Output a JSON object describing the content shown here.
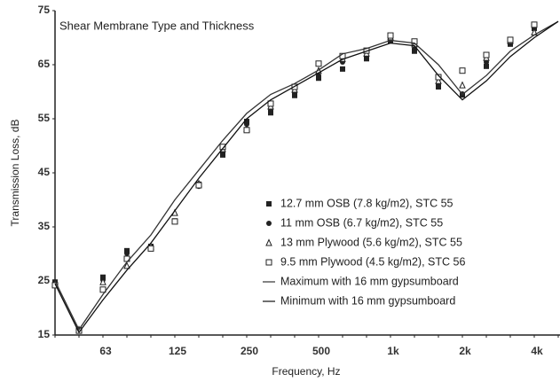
{
  "chart_data": {
    "type": "line",
    "title": "Shear Membrane Type and Thickness",
    "x_label": "Frequency, Hz",
    "y_label": "Transmission Loss, dB",
    "categories": [
      null,
      null,
      "63",
      null,
      null,
      "125",
      null,
      null,
      "250",
      null,
      null,
      "500",
      null,
      null,
      "1k",
      null,
      null,
      "2k",
      null,
      null,
      "4k",
      null
    ],
    "ylim": [
      15,
      75
    ],
    "yticks": [
      15,
      25,
      35,
      45,
      55,
      65,
      75
    ],
    "series": [
      {
        "name": "12.7 mm OSB (7.8 kg/m2), STC 55",
        "marker": "square",
        "color": "#222222",
        "values": [
          24.8,
          16,
          25.7,
          30.6,
          31.4,
          36.1,
          42.9,
          48.3,
          54.5,
          56.1,
          59.3,
          62.5,
          64.2,
          66.1,
          69.4,
          67.5,
          60.9,
          59.4,
          64.7,
          68.8,
          71.7,
          null
        ]
      },
      {
        "name": "11 mm OSB (6.7 kg/m2), STC 55",
        "marker": "circle",
        "color": "#222222",
        "values": [
          24.8,
          16,
          25.2,
          30.1,
          31,
          36,
          42.5,
          48.8,
          54,
          56.6,
          59.8,
          63,
          65.5,
          66.5,
          69.8,
          68,
          61.6,
          59.6,
          65.5,
          69.1,
          71.9,
          null
        ]
      },
      {
        "name": "13 mm Plywood (5.6 kg/m2), STC 55",
        "marker": "triangle",
        "color": "#222222",
        "values": [
          24.5,
          16,
          24.8,
          27.8,
          31.4,
          37.6,
          43,
          49.4,
          53.2,
          57.3,
          60.4,
          63.9,
          66.1,
          67.1,
          70.1,
          68.8,
          62,
          61.2,
          66.3,
          69.4,
          71,
          null
        ]
      },
      {
        "name": "9.5 mm Plywood (4.5 kg/m2), STC 56",
        "marker": "open-square",
        "color": "#222222",
        "values": [
          24.2,
          15.8,
          23.4,
          29.1,
          31,
          36,
          42.7,
          49.8,
          52.9,
          57.8,
          60.9,
          65.2,
          66.6,
          67.6,
          70.4,
          69.3,
          62.7,
          63.9,
          66.8,
          69.6,
          72.4,
          null
        ]
      },
      {
        "name": "Maximum with 16 mm gypsumboard",
        "marker": "line",
        "color": "#333333",
        "values": [
          25,
          16,
          22.5,
          28.5,
          33.5,
          40,
          45.5,
          51,
          56,
          59.5,
          61.5,
          64,
          67,
          68,
          69.5,
          69,
          65,
          59.5,
          63,
          67.5,
          70.5,
          73
        ]
      },
      {
        "name": "Minimum  with 16 mm gypsumboard",
        "marker": "line",
        "color": "#111111",
        "values": [
          24.5,
          15.5,
          21.5,
          27,
          32,
          38,
          44,
          49.5,
          55,
          58.5,
          61,
          63.5,
          66,
          67.5,
          69,
          68.5,
          63,
          58.5,
          62,
          66.5,
          70,
          73
        ]
      }
    ]
  }
}
